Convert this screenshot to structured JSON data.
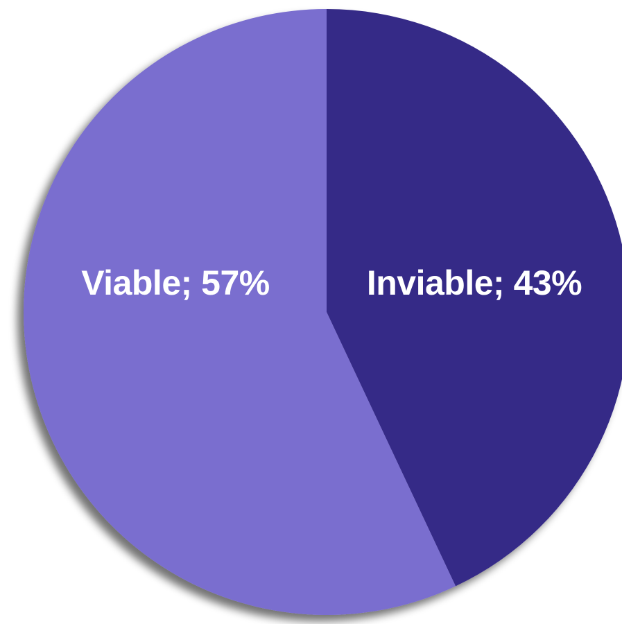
{
  "chart_data": {
    "type": "pie",
    "slices": [
      {
        "label": "Inviable",
        "value": 43,
        "color": "#352a87",
        "text": "Inviable; 43%"
      },
      {
        "label": "Viable",
        "value": 57,
        "color": "#7a6ecf",
        "text": "Viable; 57%"
      }
    ],
    "start_angle": "12 o'clock",
    "direction": "clockwise",
    "shadow": true,
    "background": "#ffffff"
  }
}
